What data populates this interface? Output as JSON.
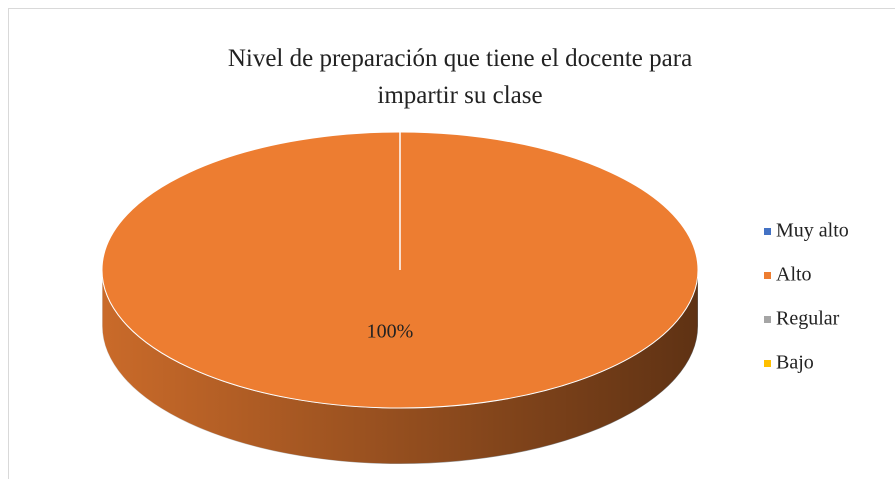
{
  "chart_data": {
    "type": "pie3d",
    "title": "Nivel de preparación que tiene el docente para impartir su clase",
    "categories": [
      "Muy alto",
      "Alto",
      "Regular",
      "Bajo"
    ],
    "values": [
      0,
      100,
      0,
      0
    ],
    "value_labels": [
      null,
      "100%",
      null,
      null
    ],
    "colors": [
      "#4472c4",
      "#ed7d31",
      "#a5a5a5",
      "#ffc000"
    ],
    "legend": "right"
  }
}
